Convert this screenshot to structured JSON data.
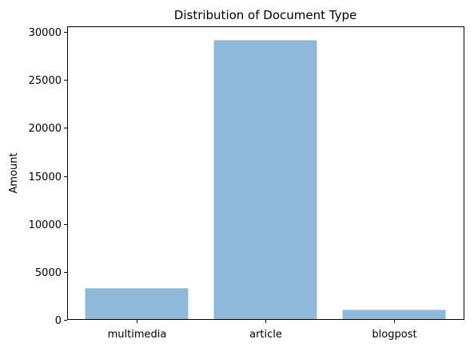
{
  "chart_data": {
    "type": "bar",
    "title": "Distribution of Document Type",
    "xlabel": "",
    "ylabel": "Amount",
    "categories": [
      "multimedia",
      "article",
      "blogpost"
    ],
    "values": [
      3300,
      29150,
      1050
    ],
    "ylim": [
      0,
      30600
    ],
    "yticks": [
      0,
      5000,
      10000,
      15000,
      20000,
      25000,
      30000
    ],
    "bar_color": "#8fb9da",
    "grid": false,
    "legend": "none"
  }
}
